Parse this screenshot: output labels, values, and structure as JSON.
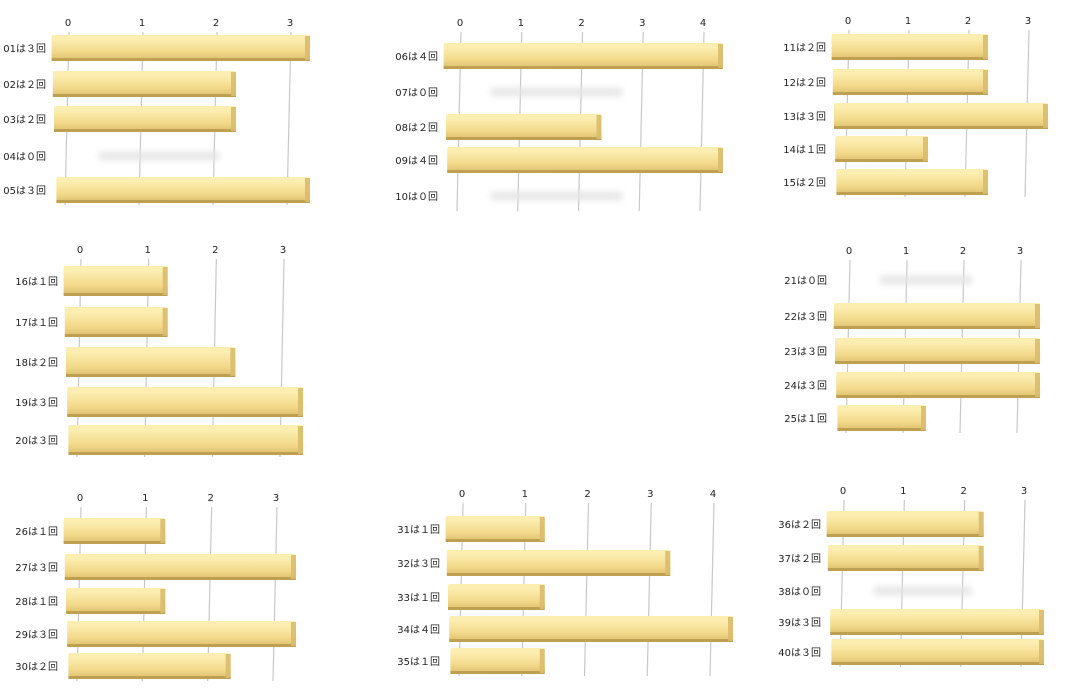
{
  "colors": {
    "bar_top": "#fbeeb0",
    "bar_face": "#f3d98a",
    "bar_bottom": "#b89a4c",
    "bar_end": "#d9bd6c",
    "grid": "#c8c8c8",
    "shadow": "#e4e4e4"
  },
  "chart_data": [
    {
      "type": "bar",
      "orientation": "horizontal",
      "categories": [
        "01は３回",
        "02は２回",
        "03は２回",
        "04は０回",
        "05は３回"
      ],
      "values": [
        3,
        2,
        2,
        0,
        3
      ],
      "xlim": [
        0,
        3
      ],
      "xticks": [
        "0",
        "1",
        "2",
        "3"
      ],
      "grid": true
    },
    {
      "type": "bar",
      "orientation": "horizontal",
      "categories": [
        "06は４回",
        "07は０回",
        "08は２回",
        "09は４回",
        "10は０回"
      ],
      "values": [
        4,
        0,
        2,
        4,
        0
      ],
      "xlim": [
        0,
        4
      ],
      "xticks": [
        "0",
        "1",
        "2",
        "3",
        "4"
      ],
      "grid": true
    },
    {
      "type": "bar",
      "orientation": "horizontal",
      "categories": [
        "11は２回",
        "12は２回",
        "13は３回",
        "14は１回",
        "15は２回"
      ],
      "values": [
        2,
        2,
        3,
        1,
        2
      ],
      "xlim": [
        0,
        3
      ],
      "xticks": [
        "0",
        "1",
        "2",
        "3"
      ],
      "grid": true
    },
    {
      "type": "bar",
      "orientation": "horizontal",
      "categories": [
        "16は１回",
        "17は１回",
        "18は２回",
        "19は３回",
        "20は３回"
      ],
      "values": [
        1,
        1,
        2,
        3,
        3
      ],
      "xlim": [
        0,
        3
      ],
      "xticks": [
        "0",
        "1",
        "2",
        "3"
      ],
      "grid": true
    },
    {
      "type": "bar",
      "orientation": "horizontal",
      "categories": [
        "21は０回",
        "22は３回",
        "23は３回",
        "24は３回",
        "25は１回"
      ],
      "values": [
        0,
        3,
        3,
        3,
        1
      ],
      "xlim": [
        0,
        3
      ],
      "xticks": [
        "0",
        "1",
        "2",
        "3"
      ],
      "grid": true
    },
    {
      "type": "bar",
      "orientation": "horizontal",
      "categories": [
        "26は１回",
        "27は３回",
        "28は１回",
        "29は３回",
        "30は２回"
      ],
      "values": [
        1,
        3,
        1,
        3,
        2
      ],
      "xlim": [
        0,
        3
      ],
      "xticks": [
        "0",
        "1",
        "2",
        "3"
      ],
      "grid": true
    },
    {
      "type": "bar",
      "orientation": "horizontal",
      "categories": [
        "31は１回",
        "32は３回",
        "33は１回",
        "34は４回",
        "35は１回"
      ],
      "values": [
        1,
        3,
        1,
        4,
        1
      ],
      "xlim": [
        0,
        4
      ],
      "xticks": [
        "0",
        "1",
        "2",
        "3",
        "4"
      ],
      "grid": true
    },
    {
      "type": "bar",
      "orientation": "horizontal",
      "categories": [
        "36は２回",
        "37は２回",
        "38は０回",
        "39は３回",
        "40は３回"
      ],
      "values": [
        2,
        2,
        0,
        3,
        3
      ],
      "xlim": [
        0,
        3
      ],
      "xticks": [
        "0",
        "1",
        "2",
        "3"
      ],
      "grid": true
    }
  ]
}
